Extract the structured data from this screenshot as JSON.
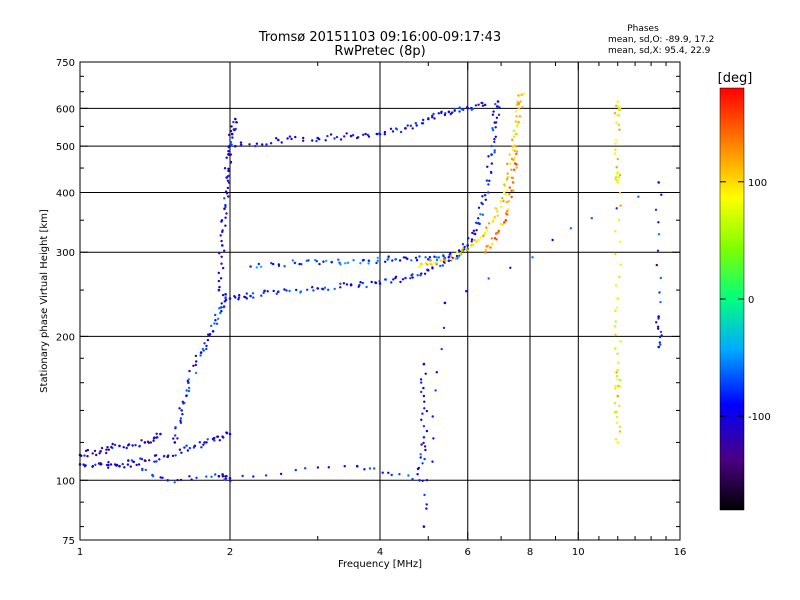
{
  "header": {
    "title": "Tromsø 20151103 09:16:00-09:17:43",
    "subtitle": "RwPretec (8p)"
  },
  "stats": {
    "heading": "Phases",
    "line_o": "mean, sd,O: -89.9, 17.2",
    "line_x": "mean, sd,X:  95.4, 22.9"
  },
  "colorbar": {
    "unit": "[deg]",
    "tick_labels": [
      "100",
      "0",
      "-100"
    ],
    "tick_values": [
      100,
      0,
      -100
    ],
    "range": [
      -180,
      180
    ]
  },
  "chart_data": {
    "type": "scatter",
    "xlabel": "Frequency [MHz]",
    "ylabel": "Stationary phase Virtual Height [km]",
    "xscale": "log",
    "yscale": "log",
    "xlim": [
      1,
      16
    ],
    "ylim": [
      75,
      750
    ],
    "xticks": [
      "1",
      "2",
      "4",
      "6",
      "8",
      "10",
      "16"
    ],
    "xtick_values": [
      1,
      2,
      4,
      6,
      8,
      10,
      16
    ],
    "yticks": [
      "75",
      "100",
      "200",
      "300",
      "400",
      "500",
      "600",
      "750"
    ],
    "ytick_values": [
      75,
      100,
      200,
      300,
      400,
      500,
      600,
      750
    ],
    "grid_x": [
      2,
      4,
      6,
      8,
      10
    ],
    "grid_y": [
      100,
      200,
      300,
      400,
      500,
      600
    ],
    "color_encoding": "phase [deg]",
    "traces": [
      {
        "points": [
          [
            1.0,
            108
          ],
          [
            1.1,
            108
          ],
          [
            1.2,
            107
          ],
          [
            1.35,
            110
          ],
          [
            1.5,
            112
          ],
          [
            1.7,
            118
          ],
          [
            1.85,
            122
          ],
          [
            2.0,
            125
          ]
        ],
        "phase": -110
      },
      {
        "points": [
          [
            1.0,
            113
          ],
          [
            1.1,
            115
          ],
          [
            1.2,
            118
          ],
          [
            1.35,
            120
          ],
          [
            1.45,
            125
          ]
        ],
        "phase": -115
      },
      {
        "points": [
          [
            1.55,
            120
          ],
          [
            1.6,
            140
          ],
          [
            1.65,
            160
          ],
          [
            1.75,
            185
          ],
          [
            1.85,
            205
          ],
          [
            1.92,
            230
          ],
          [
            1.96,
            245
          ]
        ],
        "phase": -95
      },
      {
        "points": [
          [
            1.9,
            250
          ],
          [
            1.93,
            310
          ],
          [
            1.95,
            370
          ],
          [
            1.97,
            430
          ],
          [
            1.99,
            480
          ],
          [
            2.02,
            530
          ],
          [
            2.05,
            570
          ]
        ],
        "phase": -105
      },
      {
        "points": [
          [
            2.0,
            240
          ],
          [
            2.2,
            243
          ],
          [
            2.5,
            248
          ],
          [
            3.0,
            252
          ],
          [
            3.5,
            256
          ],
          [
            4.0,
            258
          ],
          [
            4.5,
            265
          ],
          [
            5.0,
            275
          ],
          [
            5.5,
            288
          ],
          [
            6.0,
            310
          ],
          [
            6.3,
            345
          ],
          [
            6.5,
            395
          ],
          [
            6.7,
            480
          ],
          [
            6.8,
            560
          ],
          [
            6.9,
            620
          ]
        ],
        "phase": -95
      },
      {
        "points": [
          [
            2.05,
            500
          ],
          [
            2.5,
            515
          ],
          [
            3.0,
            520
          ],
          [
            3.5,
            525
          ],
          [
            4.0,
            530
          ],
          [
            4.5,
            545
          ],
          [
            5.0,
            570
          ],
          [
            5.5,
            590
          ],
          [
            6.0,
            600
          ],
          [
            6.5,
            610
          ]
        ],
        "phase": -105
      },
      {
        "points": [
          [
            2.2,
            280
          ],
          [
            2.7,
            285
          ],
          [
            3.2,
            286
          ],
          [
            3.8,
            288
          ],
          [
            4.3,
            290
          ],
          [
            5.0,
            290
          ],
          [
            5.5,
            293
          ],
          [
            6.0,
            305
          ]
        ],
        "phase": -80
      },
      {
        "points": [
          [
            4.8,
            280
          ],
          [
            5.3,
            288
          ],
          [
            5.8,
            298
          ],
          [
            6.3,
            318
          ],
          [
            6.8,
            355
          ],
          [
            7.1,
            400
          ],
          [
            7.3,
            460
          ],
          [
            7.5,
            530
          ],
          [
            7.6,
            600
          ],
          [
            7.7,
            640
          ]
        ],
        "phase": 95
      },
      {
        "points": [
          [
            6.5,
            300
          ],
          [
            6.9,
            330
          ],
          [
            7.2,
            360
          ],
          [
            7.4,
            420
          ],
          [
            7.5,
            500
          ]
        ],
        "phase": 130
      },
      {
        "points": [
          [
            12,
            620
          ],
          [
            12,
            580
          ],
          [
            12,
            440
          ],
          [
            12,
            420
          ],
          [
            12,
            240
          ],
          [
            12,
            170
          ],
          [
            12,
            150
          ],
          [
            12,
            120
          ]
        ],
        "phase": 90
      },
      {
        "points": [
          [
            1.25,
            110
          ],
          [
            1.5,
            100
          ],
          [
            1.9,
            102
          ],
          [
            2.0,
            101
          ],
          [
            3.6,
            107
          ],
          [
            4.8,
            100
          ],
          [
            4.9,
            123
          ],
          [
            4.9,
            175
          ],
          [
            4.9,
            80
          ],
          [
            5.4,
            235
          ],
          [
            14.5,
            420
          ],
          [
            14.5,
            220
          ],
          [
            14.5,
            190
          ]
        ],
        "phase": -100
      }
    ]
  }
}
